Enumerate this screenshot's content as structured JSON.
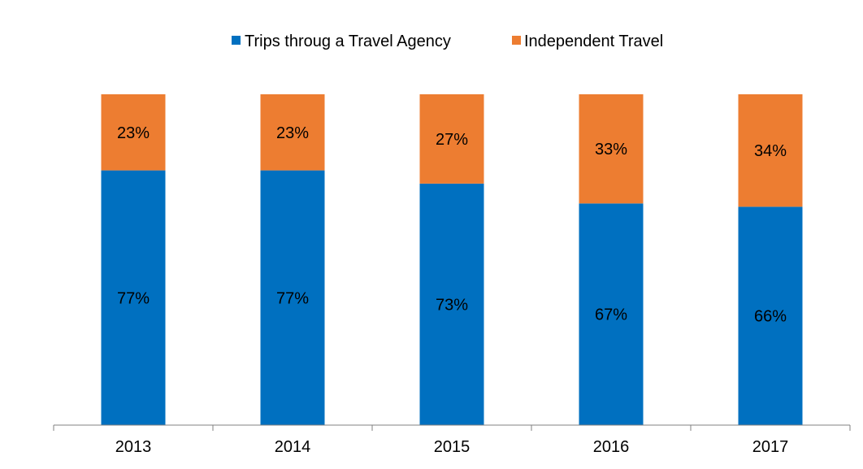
{
  "chart_data": {
    "type": "bar",
    "stacked": true,
    "categories": [
      "2013",
      "2014",
      "2015",
      "2016",
      "2017"
    ],
    "series": [
      {
        "name": "Trips throug a Travel Agency",
        "values": [
          77,
          77,
          73,
          67,
          66
        ],
        "labels": [
          "77%",
          "77%",
          "73%",
          "67%",
          "66%"
        ],
        "color": "#0070C0"
      },
      {
        "name": "Independent Travel",
        "values": [
          23,
          23,
          27,
          33,
          34
        ],
        "labels": [
          "23%",
          "23%",
          "27%",
          "33%",
          "34%"
        ],
        "color": "#ED7D31"
      }
    ],
    "ylim": [
      0,
      100
    ],
    "grid": false,
    "legend": "top-center",
    "title": "",
    "xlabel": "",
    "ylabel": ""
  }
}
